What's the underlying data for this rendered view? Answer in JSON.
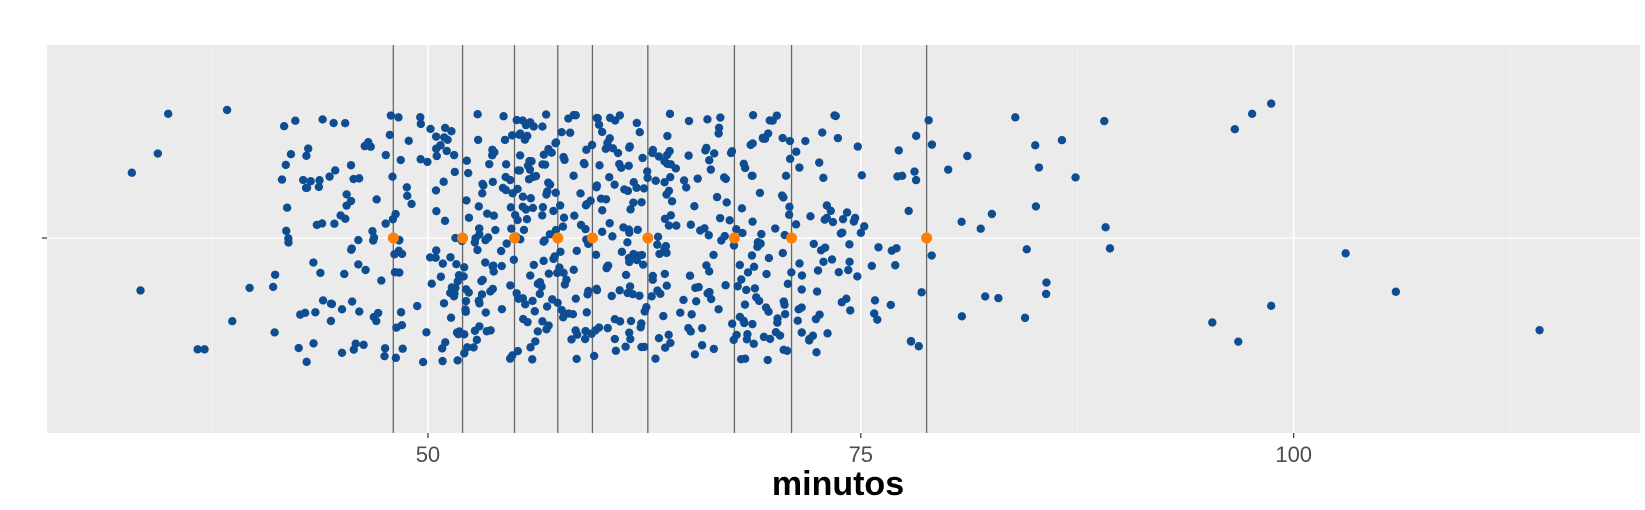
{
  "chart_data": {
    "type": "scatter",
    "title": "",
    "xlabel": "minutos",
    "ylabel": "",
    "xlim": [
      28,
      120
    ],
    "x_ticks": [
      {
        "value": 50,
        "label": "50"
      },
      {
        "value": 75,
        "label": "75"
      },
      {
        "value": 100,
        "label": "100"
      }
    ],
    "grid": true,
    "background": "#EBEBEB",
    "colors": {
      "points": "#0F4D92",
      "markers": "#FF7F00",
      "vlines": "#666666",
      "grid": "#FFFFFF"
    },
    "marker_values": [
      48,
      52,
      55,
      57.5,
      59.5,
      62.7,
      67.7,
      71,
      78.8
    ],
    "points": {
      "note_count": 700,
      "distribution": "roughly normal, mean about 60, sd about 11, jittered vertically",
      "notable_outliers": [
        {
          "x": 32.9,
          "y": 0.51
        },
        {
          "x": 33.4,
          "y": -0.41
        },
        {
          "x": 34.4,
          "y": 0.66
        },
        {
          "x": 35.0,
          "y": 0.97
        },
        {
          "x": 36.7,
          "y": -0.87
        },
        {
          "x": 37.1,
          "y": -0.87
        },
        {
          "x": 38.4,
          "y": 1.0
        },
        {
          "x": 38.7,
          "y": -0.65
        },
        {
          "x": 39.7,
          "y": -0.39
        },
        {
          "x": 103.0,
          "y": -0.12
        },
        {
          "x": 105.9,
          "y": -0.42
        },
        {
          "x": 114.2,
          "y": -0.72
        },
        {
          "x": 96.6,
          "y": 0.85
        },
        {
          "x": 97.6,
          "y": 0.97
        },
        {
          "x": 98.7,
          "y": 1.05
        },
        {
          "x": 98.7,
          "y": -0.53
        },
        {
          "x": 95.3,
          "y": -0.66
        },
        {
          "x": 96.8,
          "y": -0.81
        }
      ]
    }
  }
}
